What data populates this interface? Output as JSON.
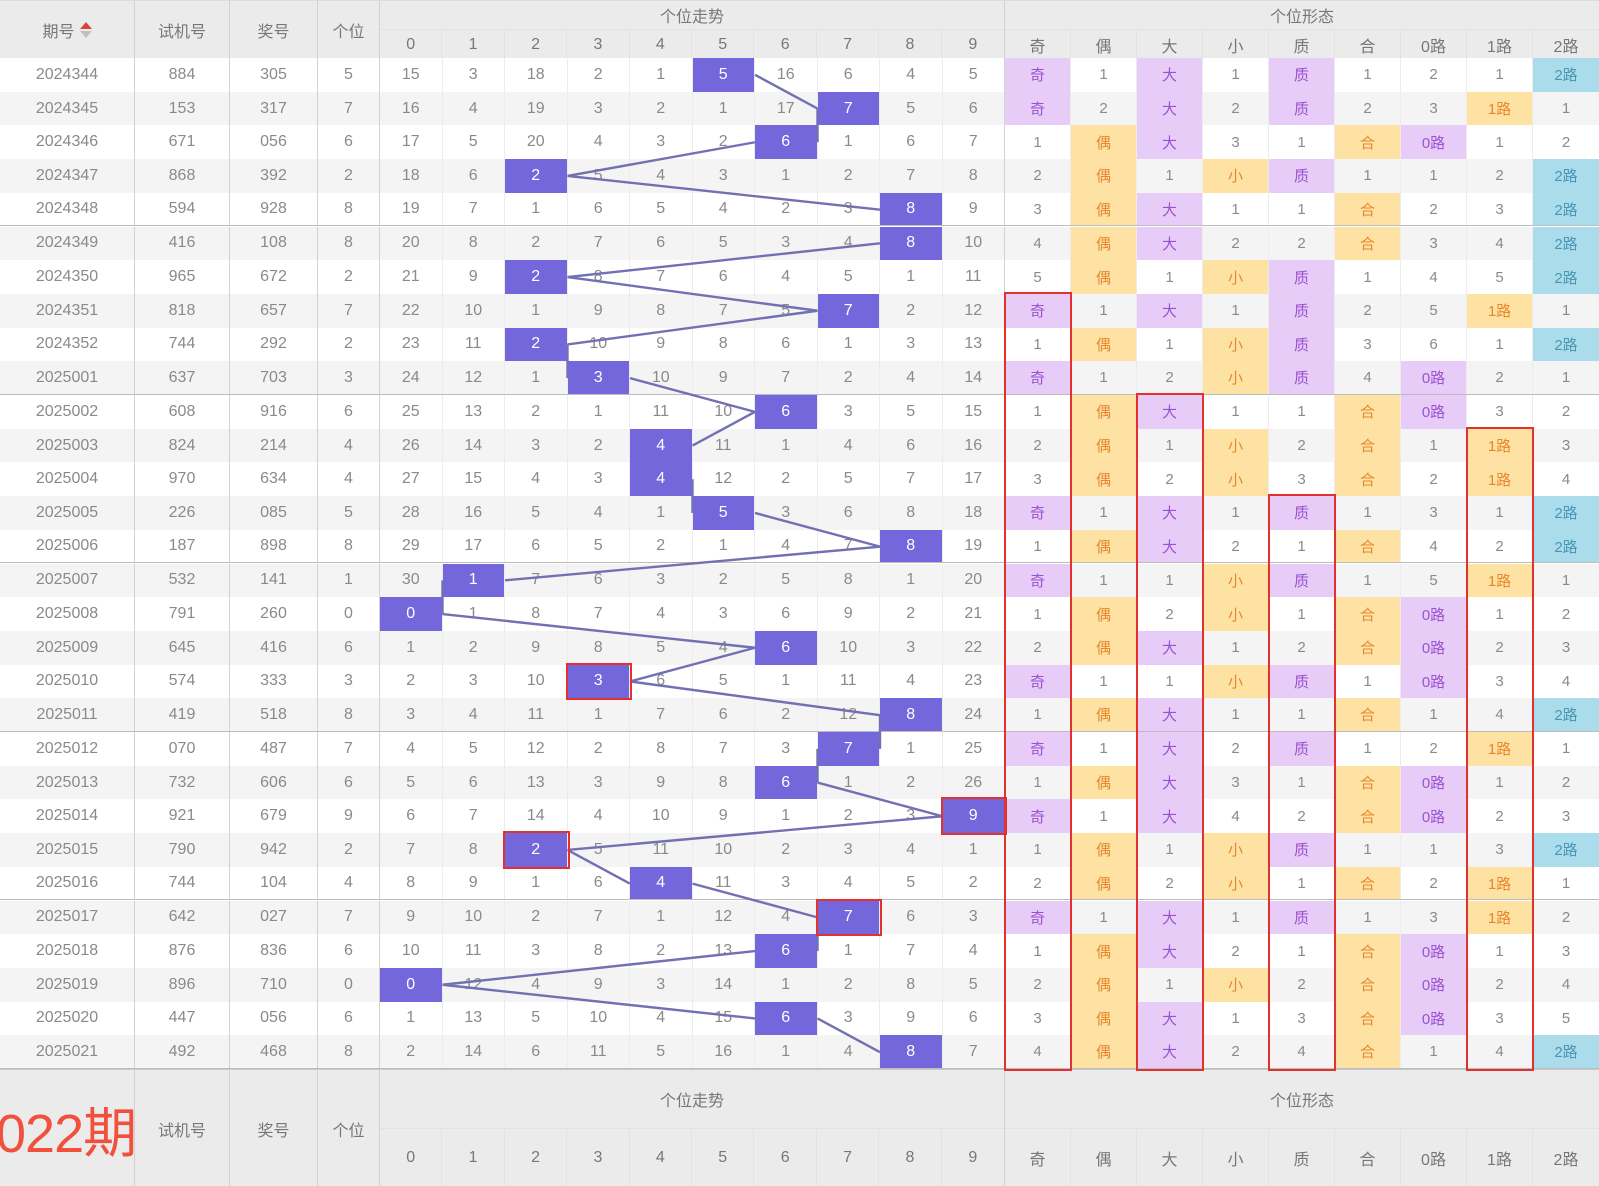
{
  "header": {
    "period": "期号",
    "test": "试机号",
    "prize": "奖号",
    "digit": "个位",
    "trend_title": "个位走势",
    "pattern_title": "个位形态",
    "trend_cols": [
      "0",
      "1",
      "2",
      "3",
      "4",
      "5",
      "6",
      "7",
      "8",
      "9"
    ],
    "pattern_cols": [
      "奇",
      "偶",
      "大",
      "小",
      "质",
      "合",
      "0路",
      "1路",
      "2路"
    ]
  },
  "rows": [
    {
      "period": "2024344",
      "test": "884",
      "prize": "305",
      "digit": "5",
      "hit": 5,
      "trend": [
        "15",
        "3",
        "18",
        "2",
        "1",
        "5",
        "16",
        "6",
        "4",
        "5"
      ],
      "pattern": [
        "奇",
        "1",
        "大",
        "1",
        "质",
        "1",
        "2",
        "1",
        "2路"
      ]
    },
    {
      "period": "2024345",
      "test": "153",
      "prize": "317",
      "digit": "7",
      "hit": 7,
      "trend": [
        "16",
        "4",
        "19",
        "3",
        "2",
        "1",
        "17",
        "7",
        "5",
        "6"
      ],
      "pattern": [
        "奇",
        "2",
        "大",
        "2",
        "质",
        "2",
        "3",
        "1路",
        "1"
      ]
    },
    {
      "period": "2024346",
      "test": "671",
      "prize": "056",
      "digit": "6",
      "hit": 6,
      "trend": [
        "17",
        "5",
        "20",
        "4",
        "3",
        "2",
        "6",
        "1",
        "6",
        "7"
      ],
      "pattern": [
        "1",
        "偶",
        "大",
        "3",
        "1",
        "合",
        "0路",
        "1",
        "2"
      ]
    },
    {
      "period": "2024347",
      "test": "868",
      "prize": "392",
      "digit": "2",
      "hit": 2,
      "trend": [
        "18",
        "6",
        "2",
        "5",
        "4",
        "3",
        "1",
        "2",
        "7",
        "8"
      ],
      "pattern": [
        "2",
        "偶",
        "1",
        "小",
        "质",
        "1",
        "1",
        "2",
        "2路"
      ]
    },
    {
      "period": "2024348",
      "test": "594",
      "prize": "928",
      "digit": "8",
      "hit": 8,
      "trend": [
        "19",
        "7",
        "1",
        "6",
        "5",
        "4",
        "2",
        "3",
        "8",
        "9"
      ],
      "pattern": [
        "3",
        "偶",
        "大",
        "1",
        "1",
        "合",
        "2",
        "3",
        "2路"
      ]
    },
    {
      "period": "2024349",
      "test": "416",
      "prize": "108",
      "digit": "8",
      "hit": 8,
      "trend": [
        "20",
        "8",
        "2",
        "7",
        "6",
        "5",
        "3",
        "4",
        "8",
        "10"
      ],
      "pattern": [
        "4",
        "偶",
        "大",
        "2",
        "2",
        "合",
        "3",
        "4",
        "2路"
      ]
    },
    {
      "period": "2024350",
      "test": "965",
      "prize": "672",
      "digit": "2",
      "hit": 2,
      "trend": [
        "21",
        "9",
        "2",
        "8",
        "7",
        "6",
        "4",
        "5",
        "1",
        "11"
      ],
      "pattern": [
        "5",
        "偶",
        "1",
        "小",
        "质",
        "1",
        "4",
        "5",
        "2路"
      ]
    },
    {
      "period": "2024351",
      "test": "818",
      "prize": "657",
      "digit": "7",
      "hit": 7,
      "trend": [
        "22",
        "10",
        "1",
        "9",
        "8",
        "7",
        "5",
        "7",
        "2",
        "12"
      ],
      "pattern": [
        "奇",
        "1",
        "大",
        "1",
        "质",
        "2",
        "5",
        "1路",
        "1"
      ]
    },
    {
      "period": "2024352",
      "test": "744",
      "prize": "292",
      "digit": "2",
      "hit": 2,
      "trend": [
        "23",
        "11",
        "2",
        "10",
        "9",
        "8",
        "6",
        "1",
        "3",
        "13"
      ],
      "pattern": [
        "1",
        "偶",
        "1",
        "小",
        "质",
        "3",
        "6",
        "1",
        "2路"
      ]
    },
    {
      "period": "2025001",
      "test": "637",
      "prize": "703",
      "digit": "3",
      "hit": 3,
      "trend": [
        "24",
        "12",
        "1",
        "3",
        "10",
        "9",
        "7",
        "2",
        "4",
        "14"
      ],
      "pattern": [
        "奇",
        "1",
        "2",
        "小",
        "质",
        "4",
        "0路",
        "2",
        "1"
      ]
    },
    {
      "period": "2025002",
      "test": "608",
      "prize": "916",
      "digit": "6",
      "hit": 6,
      "trend": [
        "25",
        "13",
        "2",
        "1",
        "11",
        "10",
        "6",
        "3",
        "5",
        "15"
      ],
      "pattern": [
        "1",
        "偶",
        "大",
        "1",
        "1",
        "合",
        "0路",
        "3",
        "2"
      ]
    },
    {
      "period": "2025003",
      "test": "824",
      "prize": "214",
      "digit": "4",
      "hit": 4,
      "trend": [
        "26",
        "14",
        "3",
        "2",
        "4",
        "11",
        "1",
        "4",
        "6",
        "16"
      ],
      "pattern": [
        "2",
        "偶",
        "1",
        "小",
        "2",
        "合",
        "1",
        "1路",
        "3"
      ]
    },
    {
      "period": "2025004",
      "test": "970",
      "prize": "634",
      "digit": "4",
      "hit": 4,
      "trend": [
        "27",
        "15",
        "4",
        "3",
        "4",
        "12",
        "2",
        "5",
        "7",
        "17"
      ],
      "pattern": [
        "3",
        "偶",
        "2",
        "小",
        "3",
        "合",
        "2",
        "1路",
        "4"
      ]
    },
    {
      "period": "2025005",
      "test": "226",
      "prize": "085",
      "digit": "5",
      "hit": 5,
      "trend": [
        "28",
        "16",
        "5",
        "4",
        "1",
        "5",
        "3",
        "6",
        "8",
        "18"
      ],
      "pattern": [
        "奇",
        "1",
        "大",
        "1",
        "质",
        "1",
        "3",
        "1",
        "2路"
      ]
    },
    {
      "period": "2025006",
      "test": "187",
      "prize": "898",
      "digit": "8",
      "hit": 8,
      "trend": [
        "29",
        "17",
        "6",
        "5",
        "2",
        "1",
        "4",
        "7",
        "8",
        "19"
      ],
      "pattern": [
        "1",
        "偶",
        "大",
        "2",
        "1",
        "合",
        "4",
        "2",
        "2路"
      ]
    },
    {
      "period": "2025007",
      "test": "532",
      "prize": "141",
      "digit": "1",
      "hit": 1,
      "trend": [
        "30",
        "1",
        "7",
        "6",
        "3",
        "2",
        "5",
        "8",
        "1",
        "20"
      ],
      "pattern": [
        "奇",
        "1",
        "1",
        "小",
        "质",
        "1",
        "5",
        "1路",
        "1"
      ]
    },
    {
      "period": "2025008",
      "test": "791",
      "prize": "260",
      "digit": "0",
      "hit": 0,
      "trend": [
        "0",
        "1",
        "8",
        "7",
        "4",
        "3",
        "6",
        "9",
        "2",
        "21"
      ],
      "pattern": [
        "1",
        "偶",
        "2",
        "小",
        "1",
        "合",
        "0路",
        "1",
        "2"
      ]
    },
    {
      "period": "2025009",
      "test": "645",
      "prize": "416",
      "digit": "6",
      "hit": 6,
      "trend": [
        "1",
        "2",
        "9",
        "8",
        "5",
        "4",
        "6",
        "10",
        "3",
        "22"
      ],
      "pattern": [
        "2",
        "偶",
        "大",
        "1",
        "2",
        "合",
        "0路",
        "2",
        "3"
      ]
    },
    {
      "period": "2025010",
      "test": "574",
      "prize": "333",
      "digit": "3",
      "hit": 3,
      "trend": [
        "2",
        "3",
        "10",
        "3",
        "6",
        "5",
        "1",
        "11",
        "4",
        "23"
      ],
      "pattern": [
        "奇",
        "1",
        "1",
        "小",
        "质",
        "1",
        "0路",
        "3",
        "4"
      ]
    },
    {
      "period": "2025011",
      "test": "419",
      "prize": "518",
      "digit": "8",
      "hit": 8,
      "trend": [
        "3",
        "4",
        "11",
        "1",
        "7",
        "6",
        "2",
        "12",
        "8",
        "24"
      ],
      "pattern": [
        "1",
        "偶",
        "大",
        "1",
        "1",
        "合",
        "1",
        "4",
        "2路"
      ]
    },
    {
      "period": "2025012",
      "test": "070",
      "prize": "487",
      "digit": "7",
      "hit": 7,
      "trend": [
        "4",
        "5",
        "12",
        "2",
        "8",
        "7",
        "3",
        "7",
        "1",
        "25"
      ],
      "pattern": [
        "奇",
        "1",
        "大",
        "2",
        "质",
        "1",
        "2",
        "1路",
        "1"
      ]
    },
    {
      "period": "2025013",
      "test": "732",
      "prize": "606",
      "digit": "6",
      "hit": 6,
      "trend": [
        "5",
        "6",
        "13",
        "3",
        "9",
        "8",
        "6",
        "1",
        "2",
        "26"
      ],
      "pattern": [
        "1",
        "偶",
        "大",
        "3",
        "1",
        "合",
        "0路",
        "1",
        "2"
      ]
    },
    {
      "period": "2025014",
      "test": "921",
      "prize": "679",
      "digit": "9",
      "hit": 9,
      "trend": [
        "6",
        "7",
        "14",
        "4",
        "10",
        "9",
        "1",
        "2",
        "3",
        "9"
      ],
      "pattern": [
        "奇",
        "1",
        "大",
        "4",
        "2",
        "合",
        "0路",
        "2",
        "3"
      ]
    },
    {
      "period": "2025015",
      "test": "790",
      "prize": "942",
      "digit": "2",
      "hit": 2,
      "trend": [
        "7",
        "8",
        "2",
        "5",
        "11",
        "10",
        "2",
        "3",
        "4",
        "1"
      ],
      "pattern": [
        "1",
        "偶",
        "1",
        "小",
        "质",
        "1",
        "1",
        "3",
        "2路"
      ]
    },
    {
      "period": "2025016",
      "test": "744",
      "prize": "104",
      "digit": "4",
      "hit": 4,
      "trend": [
        "8",
        "9",
        "1",
        "6",
        "4",
        "11",
        "3",
        "4",
        "5",
        "2"
      ],
      "pattern": [
        "2",
        "偶",
        "2",
        "小",
        "1",
        "合",
        "2",
        "1路",
        "1"
      ]
    },
    {
      "period": "2025017",
      "test": "642",
      "prize": "027",
      "digit": "7",
      "hit": 7,
      "trend": [
        "9",
        "10",
        "2",
        "7",
        "1",
        "12",
        "4",
        "7",
        "6",
        "3"
      ],
      "pattern": [
        "奇",
        "1",
        "大",
        "1",
        "质",
        "1",
        "3",
        "1路",
        "2"
      ]
    },
    {
      "period": "2025018",
      "test": "876",
      "prize": "836",
      "digit": "6",
      "hit": 6,
      "trend": [
        "10",
        "11",
        "3",
        "8",
        "2",
        "13",
        "6",
        "1",
        "7",
        "4"
      ],
      "pattern": [
        "1",
        "偶",
        "大",
        "2",
        "1",
        "合",
        "0路",
        "1",
        "3"
      ]
    },
    {
      "period": "2025019",
      "test": "896",
      "prize": "710",
      "digit": "0",
      "hit": 0,
      "trend": [
        "0",
        "12",
        "4",
        "9",
        "3",
        "14",
        "1",
        "2",
        "8",
        "5"
      ],
      "pattern": [
        "2",
        "偶",
        "1",
        "小",
        "2",
        "合",
        "0路",
        "2",
        "4"
      ]
    },
    {
      "period": "2025020",
      "test": "447",
      "prize": "056",
      "digit": "6",
      "hit": 6,
      "trend": [
        "1",
        "13",
        "5",
        "10",
        "4",
        "15",
        "6",
        "3",
        "9",
        "6"
      ],
      "pattern": [
        "3",
        "偶",
        "大",
        "1",
        "3",
        "合",
        "0路",
        "3",
        "5"
      ]
    },
    {
      "period": "2025021",
      "test": "492",
      "prize": "468",
      "digit": "8",
      "hit": 8,
      "trend": [
        "2",
        "14",
        "6",
        "11",
        "5",
        "16",
        "1",
        "4",
        "8",
        "7"
      ],
      "pattern": [
        "4",
        "偶",
        "大",
        "2",
        "4",
        "合",
        "1",
        "4",
        "2路"
      ]
    }
  ],
  "red_cells": [
    {
      "row": 18,
      "col": 3
    },
    {
      "row": 22,
      "col": 9
    },
    {
      "row": 23,
      "col": 2
    },
    {
      "row": 25,
      "col": 7
    }
  ],
  "red_columns": [
    {
      "col": 0,
      "from_row": 7
    },
    {
      "col": 2,
      "from_row": 10
    },
    {
      "col": 4,
      "from_row": 13
    },
    {
      "col": 7,
      "from_row": 11
    }
  ],
  "footer": {
    "next_period": "022期",
    "test": "试机号",
    "prize": "奖号",
    "digit": "个位",
    "trend_title": "个位走势",
    "pattern_title": "个位形态",
    "trend_cols": [
      "0",
      "1",
      "2",
      "3",
      "4",
      "5",
      "6",
      "7",
      "8",
      "9"
    ],
    "pattern_cols": [
      "奇",
      "偶",
      "大",
      "小",
      "质",
      "合",
      "0路",
      "1路",
      "2路"
    ]
  },
  "colors": {
    "hit_cell": "#7467dc",
    "trend_line": "#7170b3",
    "purple_bg": "#e6ccf7",
    "purple_text": "#9b51d1",
    "orange_bg": "#fee2a4",
    "orange_text": "#e7872e",
    "cyan_bg": "#abdcec",
    "cyan_text": "#4a96b4",
    "red_box": "#e23230",
    "next_period_text": "#f0503c",
    "header_bg": "#ebebeb"
  }
}
